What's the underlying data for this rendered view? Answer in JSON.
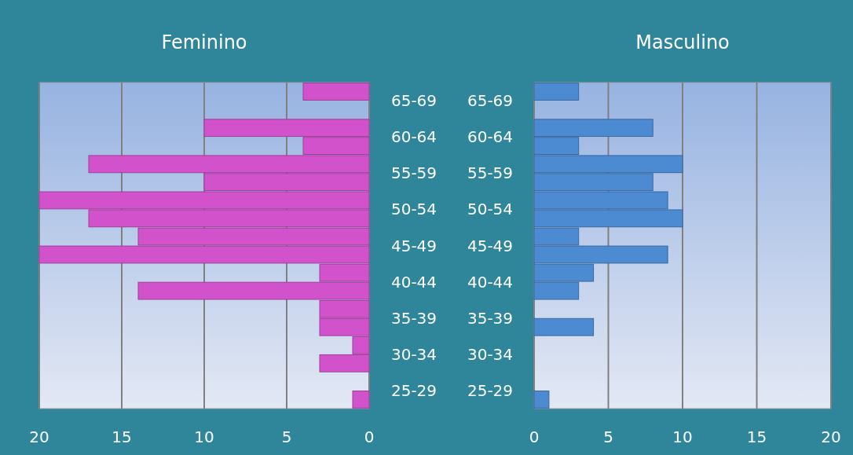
{
  "chart_data": [
    {
      "type": "bar",
      "orientation": "horizontal",
      "title": "Feminino",
      "categories": [
        "65-69",
        "60-64",
        "55-59",
        "50-54",
        "45-49",
        "40-44",
        "35-39",
        "30-34",
        "25-29"
      ],
      "series": [
        {
          "color": "#d252cc",
          "values": [
            4,
            10,
            17,
            20,
            14,
            3,
            3,
            1,
            null
          ]
        },
        {
          "color": "#d252cc",
          "values": [
            null,
            4,
            10,
            17,
            20,
            14,
            3,
            3,
            1
          ]
        }
      ],
      "xlim": [
        20,
        0
      ],
      "xticks": [
        20,
        15,
        10,
        5,
        0
      ],
      "grid": "x"
    },
    {
      "type": "bar",
      "orientation": "horizontal",
      "title": "Masculino",
      "categories": [
        "65-69",
        "60-64",
        "55-59",
        "50-54",
        "45-49",
        "40-44",
        "35-39",
        "30-34",
        "25-29"
      ],
      "series": [
        {
          "color": "#4c8ad2",
          "values": [
            3,
            8,
            10,
            9,
            3,
            4,
            null,
            null,
            null
          ]
        },
        {
          "color": "#4c8ad2",
          "values": [
            null,
            3,
            8,
            10,
            9,
            3,
            4,
            null,
            1
          ]
        }
      ],
      "xlim": [
        0,
        20
      ],
      "xticks": [
        0,
        5,
        10,
        15,
        20
      ],
      "grid": "x"
    }
  ]
}
